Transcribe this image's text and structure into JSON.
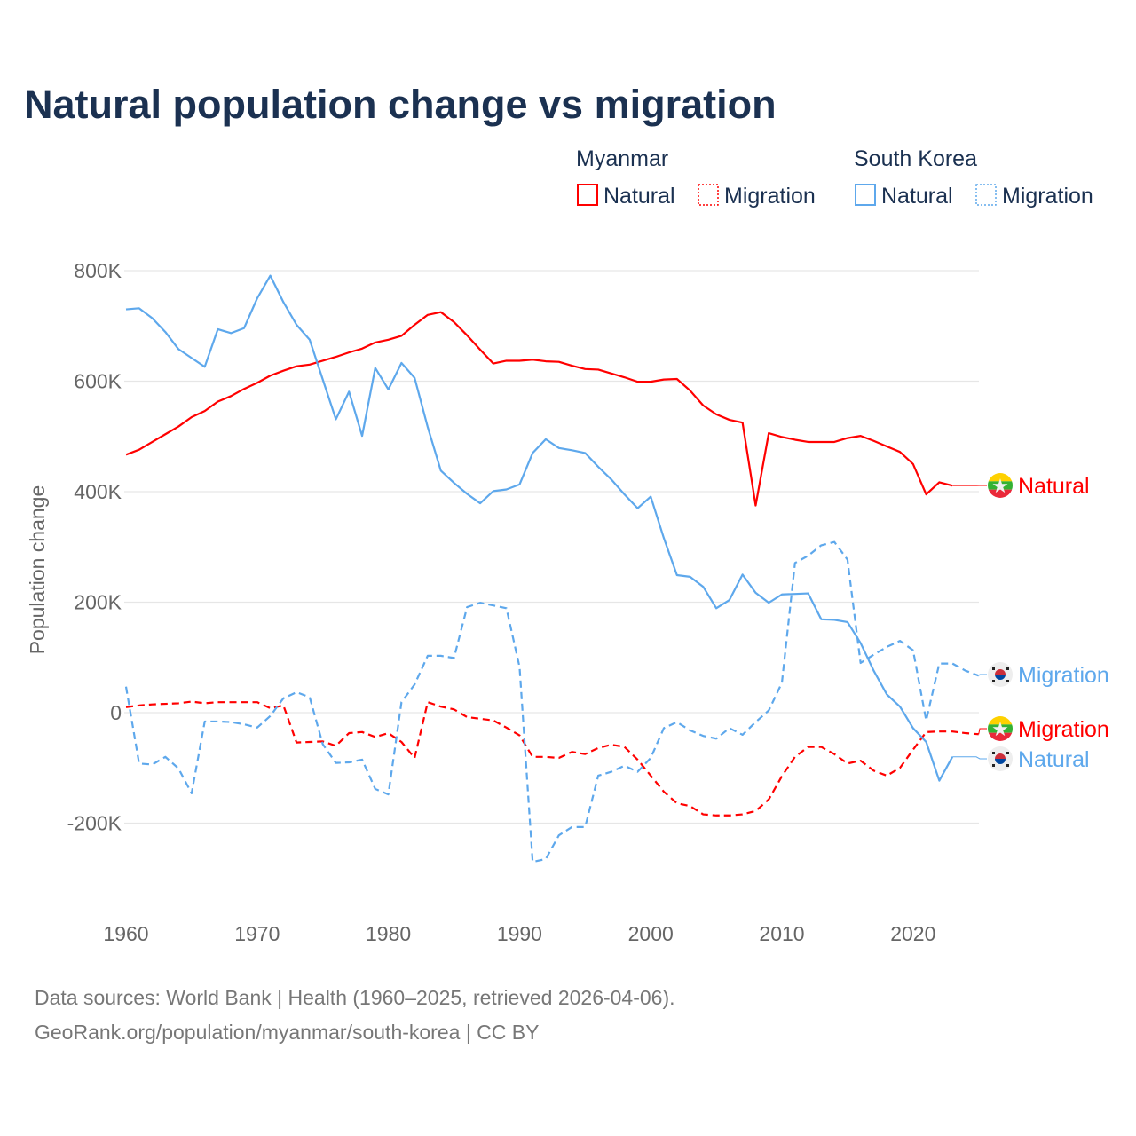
{
  "colors": {
    "myanmar": "#ff0000",
    "south_korea": "#5ea8ec",
    "title": "#1b3151"
  },
  "source": {
    "line1": "Data sources: World Bank | Health (1960–2025, retrieved 2026-04-06).",
    "line2": "GeoRank.org/population/myanmar/south-korea | CC BY"
  },
  "legend": {
    "groups": [
      {
        "name": "Myanmar",
        "items": [
          "Natural",
          "Migration"
        ]
      },
      {
        "name": "South Korea",
        "items": [
          "Natural",
          "Migration"
        ]
      }
    ]
  },
  "end_labels": {
    "myanmar_natural": "Natural",
    "korea_migration": "Migration",
    "myanmar_migration": "Migration",
    "korea_natural": "Natural"
  },
  "flags": {
    "myanmar": "myanmar-flag-icon",
    "south_korea": "south-korea-flag-icon"
  },
  "chart_data": {
    "type": "line",
    "title": "Natural population change vs migration",
    "xlabel": "",
    "ylabel": "Population change",
    "xlim": [
      1960,
      2025
    ],
    "ylim": [
      -300000,
      850000
    ],
    "x_ticks": [
      1960,
      1970,
      1980,
      1990,
      2000,
      2010,
      2020
    ],
    "x_tick_labels": [
      "1960",
      "1970",
      "1980",
      "1990",
      "2000",
      "2010",
      "2020"
    ],
    "y_ticks": [
      -200000,
      0,
      200000,
      400000,
      600000,
      800000
    ],
    "y_tick_labels": [
      "-200K",
      "0",
      "200K",
      "400K",
      "600K",
      "800K"
    ],
    "grid": true,
    "legend_position": "top-right",
    "series": [
      {
        "name": "Myanmar Natural",
        "country": "myanmar",
        "style": "solid",
        "start_year": 1960,
        "values": [
          467,
          476,
          490,
          504,
          518,
          535,
          546,
          563,
          573,
          586,
          597,
          610,
          619,
          627,
          630,
          637,
          644,
          652,
          659,
          670,
          675,
          682,
          702,
          720,
          725,
          707,
          683,
          657,
          632,
          637,
          637,
          639,
          636,
          635,
          628,
          622,
          621,
          614,
          607,
          599,
          599,
          603,
          604,
          583,
          556,
          540,
          530,
          525,
          375,
          506,
          499,
          494,
          490,
          490,
          490,
          497,
          501,
          492,
          482,
          472,
          450,
          395,
          417,
          411
        ]
      },
      {
        "name": "Myanmar Migration",
        "country": "myanmar",
        "style": "dashed",
        "start_year": 1960,
        "values": [
          10,
          13,
          15,
          16,
          17,
          20,
          17,
          19,
          19,
          19,
          19,
          8,
          13,
          -54,
          -53,
          -52,
          -60,
          -37,
          -35,
          -44,
          -37,
          -53,
          -82,
          19,
          11,
          6,
          -8,
          -11,
          -14,
          -27,
          -41,
          -80,
          -80,
          -82,
          -71,
          -75,
          -64,
          -58,
          -62,
          -85,
          -114,
          -143,
          -164,
          -169,
          -184,
          -186,
          -186,
          -184,
          -178,
          -157,
          -115,
          -80,
          -62,
          -62,
          -75,
          -92,
          -87,
          -105,
          -114,
          -100,
          -67,
          -35,
          -34,
          -34,
          -37,
          -39
        ]
      },
      {
        "name": "South Korea Natural",
        "country": "south_korea",
        "style": "solid",
        "start_year": 1960,
        "values": [
          730,
          732,
          714,
          689,
          658,
          642,
          626,
          694,
          687,
          696,
          750,
          791,
          743,
          702,
          675,
          603,
          531,
          581,
          501,
          624,
          585,
          633,
          606,
          517,
          438,
          416,
          396,
          379,
          401,
          404,
          413,
          470,
          495,
          479,
          475,
          470,
          445,
          422,
          395,
          370,
          391,
          316,
          249,
          246,
          228,
          189,
          204,
          250,
          217,
          199,
          214,
          215,
          216,
          169,
          168,
          164,
          126,
          76,
          33,
          11,
          -28,
          -53,
          -123,
          -80
        ]
      },
      {
        "name": "South Korea Migration",
        "country": "south_korea",
        "style": "dashed",
        "start_year": 1960,
        "values": [
          47,
          -92,
          -94,
          -80,
          -101,
          -146,
          -16,
          -16,
          -17,
          -21,
          -27,
          -6,
          26,
          37,
          28,
          -57,
          -91,
          -90,
          -85,
          -138,
          -148,
          19,
          51,
          103,
          103,
          99,
          191,
          199,
          194,
          189,
          83,
          -270,
          -265,
          -222,
          -207,
          -207,
          -114,
          -107,
          -96,
          -107,
          -82,
          -28,
          -17,
          -32,
          -42,
          -47,
          -28,
          -40,
          -17,
          4,
          54,
          271,
          284,
          303,
          309,
          277,
          90,
          105,
          119,
          130,
          113,
          -14,
          89,
          89,
          76,
          67
        ]
      }
    ],
    "value_unit": "thousands"
  }
}
